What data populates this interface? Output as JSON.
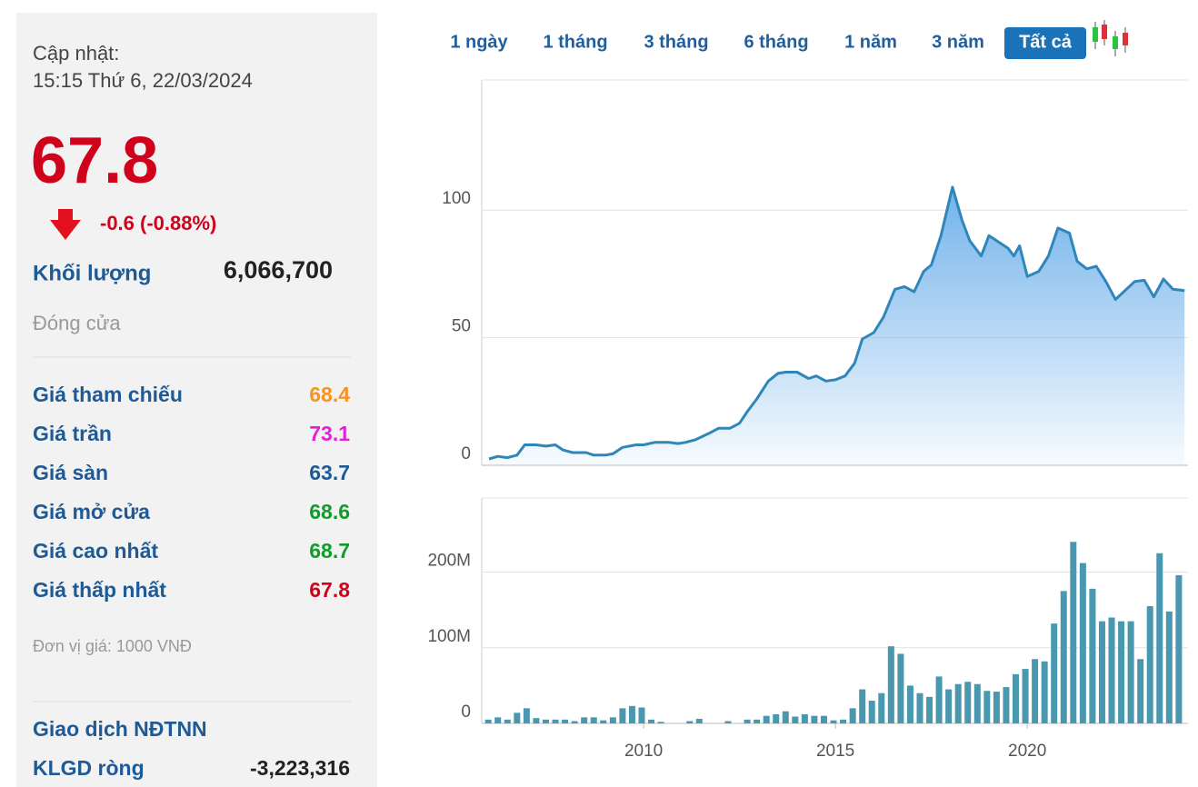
{
  "panel": {
    "update_label": "Cập nhật:",
    "update_time": "15:15 Thứ 6, 22/03/2024",
    "price": "67.8",
    "change": "-0.6 (-0.88%)",
    "volume_label": "Khối lượng",
    "volume": "6,066,700",
    "status": "Đóng cửa",
    "rows": [
      {
        "label": "Giá tham chiếu",
        "value": "68.4",
        "color": "#f7931e"
      },
      {
        "label": "Giá trần",
        "value": "73.1",
        "color": "#e61fd6"
      },
      {
        "label": "Giá sàn",
        "value": "63.7",
        "color": "#1e5a96"
      },
      {
        "label": "Giá mở cửa",
        "value": "68.6",
        "color": "#0f9d2a"
      },
      {
        "label": "Giá cao nhất",
        "value": "68.7",
        "color": "#0f9d2a"
      },
      {
        "label": "Giá thấp nhất",
        "value": "67.8",
        "color": "#d0021b"
      }
    ],
    "unit": "Đơn vị giá: 1000 VNĐ",
    "foreign_title": "Giao dịch NĐTNN",
    "net_label": "KLGD ròng",
    "net_value": "-3,223,316"
  },
  "tabs": [
    "1 ngày",
    "1 tháng",
    "3 tháng",
    "6 tháng",
    "1 năm",
    "3 năm",
    "Tất cả"
  ],
  "active_tab": 6,
  "chart_data": [
    {
      "type": "area",
      "color": "#2f86b8",
      "x": [
        2005.97,
        2006.2,
        2006.45,
        2006.7,
        2006.9,
        2007.2,
        2007.45,
        2007.7,
        2007.9,
        2008.15,
        2008.5,
        2008.7,
        2009.0,
        2009.2,
        2009.45,
        2009.8,
        2010.0,
        2010.3,
        2010.65,
        2010.9,
        2011.1,
        2011.35,
        2011.7,
        2011.95,
        2012.25,
        2012.5,
        2012.7,
        2012.95,
        2013.25,
        2013.5,
        2013.7,
        2014.0,
        2014.3,
        2014.5,
        2014.75,
        2015.0,
        2015.25,
        2015.5,
        2015.7,
        2016.0,
        2016.25,
        2016.55,
        2016.8,
        2017.05,
        2017.3,
        2017.5,
        2017.75,
        2018.05,
        2018.3,
        2018.5,
        2018.8,
        2019.0,
        2019.5,
        2019.65,
        2019.8,
        2020.0,
        2020.3,
        2020.55,
        2020.8,
        2021.1,
        2021.3,
        2021.55,
        2021.8,
        2022.05,
        2022.3,
        2022.8,
        2023.05,
        2023.3,
        2023.55,
        2023.8,
        2024.1
      ],
      "values": [
        2.5,
        3.5,
        3,
        4,
        8,
        8,
        7.5,
        8,
        6,
        5,
        5,
        4,
        4,
        4.5,
        7,
        8,
        8,
        9,
        9,
        8.5,
        9,
        10,
        12.5,
        14.5,
        14.5,
        16.5,
        21,
        26,
        33,
        36,
        36.5,
        36.5,
        34,
        35,
        33,
        33.5,
        35,
        40,
        49.5,
        52,
        58,
        69,
        70,
        68,
        76,
        78.5,
        90,
        109,
        96,
        88,
        82,
        90,
        85,
        82,
        86,
        74,
        76,
        82,
        93,
        91,
        80,
        77,
        78,
        72,
        65,
        72,
        72.5,
        66,
        73,
        69,
        68.5
      ],
      "xlim": [
        2005.78,
        2024.19
      ],
      "ylim": [
        0,
        151
      ],
      "yticks": [
        0,
        50,
        100
      ],
      "grid": true
    },
    {
      "type": "bar",
      "color": "#4a98b0",
      "x": [
        2005.95,
        2006.2,
        2006.45,
        2006.7,
        2006.95,
        2007.2,
        2007.45,
        2007.7,
        2007.95,
        2008.2,
        2008.45,
        2008.7,
        2008.95,
        2009.2,
        2009.45,
        2009.7,
        2009.95,
        2010.2,
        2010.45,
        2010.7,
        2010.95,
        2011.2,
        2011.45,
        2011.7,
        2011.95,
        2012.2,
        2012.45,
        2012.7,
        2012.95,
        2013.2,
        2013.45,
        2013.7,
        2013.95,
        2014.2,
        2014.45,
        2014.7,
        2014.95,
        2015.2,
        2015.45,
        2015.7,
        2015.95,
        2016.2,
        2016.45,
        2016.7,
        2016.95,
        2017.2,
        2017.45,
        2017.7,
        2017.95,
        2018.2,
        2018.45,
        2018.7,
        2018.95,
        2019.2,
        2019.45,
        2019.7,
        2019.95,
        2020.2,
        2020.45,
        2020.7,
        2020.95,
        2021.2,
        2021.45,
        2021.7,
        2021.95,
        2022.2,
        2022.45,
        2022.7,
        2022.95,
        2023.2,
        2023.45,
        2023.7,
        2023.95
      ],
      "values": [
        5000000.0,
        8000000.0,
        5000000.0,
        14000000.0,
        20000000.0,
        7000000.0,
        5000000.0,
        5000000.0,
        5000000.0,
        3000000.0,
        8000000.0,
        8000000.0,
        4000000.0,
        8000000.0,
        20000000.0,
        23000000.0,
        21000000.0,
        5000000.0,
        2000000.0,
        0,
        0,
        3000000.0,
        6000000.0,
        0,
        0,
        3000000.0,
        0,
        5000000.0,
        5000000.0,
        10000000.0,
        12000000.0,
        16000000.0,
        9000000.0,
        12000000.0,
        10000000.0,
        10000000.0,
        4000000.0,
        5000000.0,
        20000000.0,
        45000000.0,
        30000000.0,
        40000000.0,
        102000000.0,
        92000000.0,
        50000000.0,
        40000000.0,
        35000000.0,
        62000000.0,
        45000000.0,
        52000000.0,
        55000000.0,
        52000000.0,
        43000000.0,
        42000000.0,
        48000000.0,
        65000000.0,
        72000000.0,
        85000000.0,
        82000000.0,
        132000000.0,
        175000000.0,
        240000000.0,
        212000000.0,
        178000000.0,
        135000000.0,
        140000000.0,
        135000000.0,
        135000000.0,
        85000000.0,
        155000000.0,
        225000000.0,
        148000000.0,
        196000000.0
      ],
      "xlim": [
        2005.78,
        2024.19
      ],
      "ylim": [
        0,
        298000000
      ],
      "yticks": [
        0,
        {
          "value": 100000000,
          "label": "100M"
        },
        {
          "value": 200000000,
          "label": "200M"
        }
      ],
      "xticks": [
        2010,
        2015,
        2020
      ],
      "grid": true
    }
  ]
}
